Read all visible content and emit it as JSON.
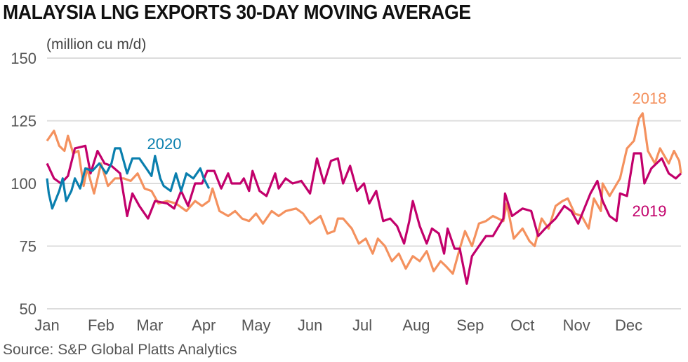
{
  "chart_data": {
    "type": "line",
    "title": "MALAYSIA LNG EXPORTS 30-DAY MOVING AVERAGE",
    "ylabel": "(million cu m/d)",
    "source": "Source: S&P Global Platts Analytics",
    "ylim": [
      50,
      150
    ],
    "yticks": [
      "150",
      "125",
      "100",
      "75",
      "50"
    ],
    "xticks": [
      "Jan",
      "Feb",
      "Mar",
      "Apr",
      "May",
      "Jun",
      "Jul",
      "Aug",
      "Sep",
      "Oct",
      "Nov",
      "Dec"
    ],
    "xlim_day_of_year": [
      1,
      365
    ],
    "grid": true,
    "legend": "inline labels",
    "series": [
      {
        "name": "2018",
        "color": "#F4915E",
        "x": [
          1,
          5,
          8,
          11,
          13,
          16,
          19,
          22,
          24,
          28,
          32,
          36,
          40,
          45,
          49,
          53,
          57,
          61,
          65,
          70,
          75,
          81,
          86,
          90,
          94,
          96,
          100,
          105,
          109,
          113,
          117,
          121,
          125,
          130,
          134,
          138,
          144,
          148,
          152,
          158,
          162,
          166,
          168,
          171,
          176,
          180,
          184,
          188,
          191,
          195,
          199,
          203,
          207,
          211,
          215,
          219,
          223,
          227,
          230,
          234,
          238,
          241,
          245,
          249,
          253,
          257,
          263,
          265,
          269,
          274,
          278,
          281,
          285,
          289,
          293,
          297,
          300,
          304,
          308,
          312,
          315,
          319,
          320,
          324,
          330,
          334,
          338,
          341,
          343,
          346,
          350,
          353,
          358,
          361,
          364,
          365
        ],
        "y": [
          117,
          121,
          115,
          113,
          119,
          112,
          113,
          99,
          106,
          96,
          108,
          99,
          102,
          102,
          101,
          104,
          98,
          97,
          92,
          93,
          92,
          89,
          93,
          91,
          93,
          98,
          89,
          87,
          89,
          86,
          85,
          88,
          84,
          89,
          87,
          89,
          90,
          88,
          84,
          87,
          80,
          81,
          86,
          86,
          82,
          76,
          78,
          72,
          78,
          75,
          69,
          72,
          66,
          71,
          69,
          73,
          65,
          69,
          67,
          64,
          74,
          81,
          75,
          84,
          85,
          87,
          85,
          92,
          78,
          82,
          77,
          75,
          86,
          82,
          91,
          93,
          94,
          88,
          87,
          82,
          94,
          89,
          100,
          95,
          102,
          114,
          117,
          126,
          128,
          113,
          108,
          114,
          108,
          113,
          109,
          104
        ]
      },
      {
        "name": "2019",
        "color": "#C2006B",
        "x": [
          1,
          5,
          9,
          13,
          17,
          23,
          26,
          30,
          34,
          38,
          43,
          47,
          50,
          54,
          59,
          63,
          70,
          74,
          78,
          82,
          86,
          90,
          93,
          97,
          101,
          105,
          107,
          112,
          114,
          117,
          119,
          123,
          127,
          132,
          134,
          138,
          142,
          147,
          152,
          156,
          160,
          164,
          168,
          171,
          175,
          179,
          183,
          186,
          190,
          194,
          198,
          202,
          206,
          209,
          211,
          215,
          219,
          222,
          226,
          229,
          231,
          235,
          238,
          242,
          245,
          249,
          253,
          257,
          263,
          264,
          268,
          274,
          279,
          283,
          287,
          293,
          298,
          302,
          306,
          313,
          317,
          320,
          324,
          328,
          330,
          334,
          338,
          342,
          344,
          348,
          354,
          358,
          362,
          365
        ],
        "y": [
          108,
          102,
          100,
          103,
          114,
          115,
          104,
          113,
          108,
          107,
          104,
          87,
          96,
          91,
          86,
          93,
          92,
          90,
          97,
          91,
          100,
          100,
          105,
          105,
          98,
          104,
          100,
          100,
          102,
          97,
          105,
          97,
          95,
          104,
          98,
          102,
          100,
          101,
          96,
          110,
          100,
          109,
          110,
          100,
          107,
          97,
          100,
          92,
          97,
          85,
          86,
          83,
          76,
          85,
          93,
          83,
          76,
          82,
          80,
          72,
          82,
          74,
          74,
          60,
          71,
          75,
          79,
          79,
          86,
          96,
          87,
          90,
          89,
          79,
          82,
          86,
          91,
          89,
          84,
          96,
          101,
          93,
          87,
          85,
          96,
          95,
          112,
          112,
          100,
          106,
          110,
          104,
          102,
          104
        ]
      },
      {
        "name": "2020",
        "color": "#0A7FAE",
        "x": [
          1,
          2,
          4,
          8,
          10,
          12,
          15,
          17,
          20,
          23,
          27,
          31,
          35,
          38,
          40,
          43,
          47,
          50,
          54,
          58,
          61,
          63,
          66,
          68,
          72,
          75,
          78,
          81,
          85,
          89,
          91,
          94
        ],
        "y": [
          102,
          96,
          90,
          97,
          102,
          93,
          97,
          102,
          98,
          106,
          105,
          108,
          104,
          108,
          114,
          114,
          104,
          110,
          110,
          106,
          103,
          111,
          102,
          99,
          97,
          104,
          97,
          104,
          102,
          106,
          102,
          98
        ]
      }
    ]
  }
}
